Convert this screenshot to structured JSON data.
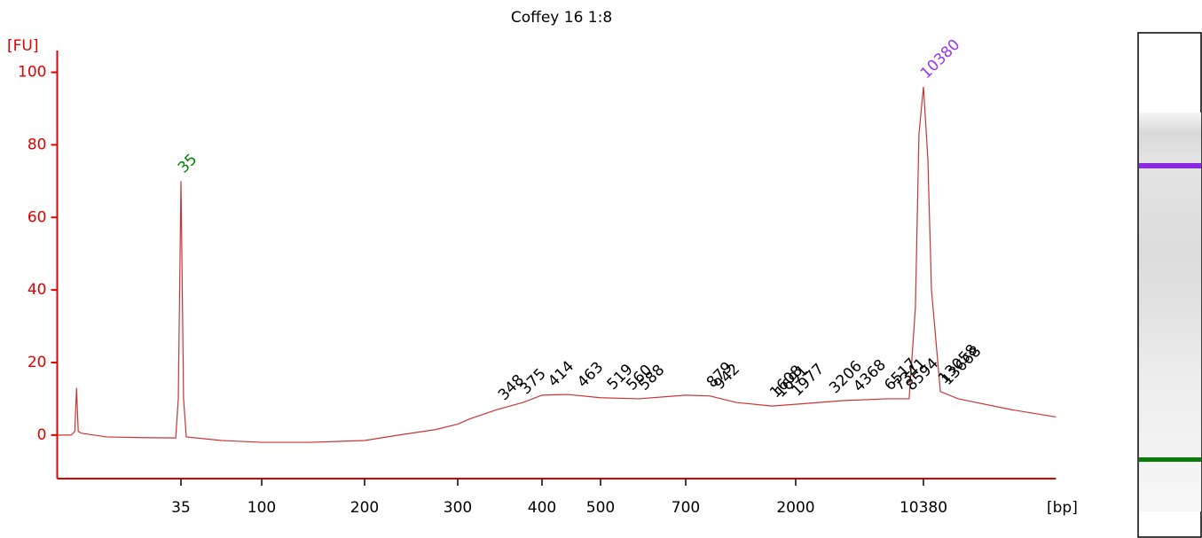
{
  "chart_data": {
    "type": "line",
    "title": "Coffey 16 1:8",
    "y_label": "[FU]",
    "x_label": "[bp]",
    "color": "#cc3333",
    "axis_color": "#e00000",
    "x": [
      7,
      8.4,
      8.8,
      9,
      9.2,
      9.6,
      13.3,
      21.1,
      32.7,
      33.8,
      34.6,
      35,
      35.4,
      36.2,
      37.5,
      59.4,
      100,
      139,
      200,
      232,
      272,
      300,
      313,
      343,
      375,
      400,
      441,
      500,
      581,
      700,
      879,
      1135,
      1592,
      2000,
      3673,
      6516,
      8630,
      9354,
      9795,
      10380,
      10990,
      11510,
      12910,
      16260,
      20440,
      32310,
      57280
    ],
    "values": [
      0,
      0,
      1,
      13,
      1,
      0.5,
      -0.5,
      -0.7,
      -0.8,
      10,
      50,
      70,
      50,
      10,
      -0.5,
      -1.5,
      -2,
      -2,
      -1.5,
      0,
      1.5,
      3,
      4.5,
      7,
      9,
      11,
      11.2,
      10.3,
      10,
      11,
      10.8,
      9,
      8,
      8.5,
      9.5,
      10,
      10,
      35,
      83,
      96,
      76,
      40,
      12,
      10,
      9,
      7,
      5
    ],
    "xlim": [
      7,
      57280
    ],
    "ylim": [
      -12,
      106
    ],
    "xticks": [
      35,
      100,
      200,
      300,
      400,
      500,
      700,
      2000,
      10380
    ],
    "yticks": [
      0,
      20,
      40,
      60,
      80,
      100
    ],
    "peaks": [
      {
        "size": 35,
        "color": "#008000"
      },
      {
        "size": 10380,
        "color": "#9933ff"
      },
      {
        "size": 348,
        "color": "#000000"
      },
      {
        "size": 375,
        "color": "#000000"
      },
      {
        "size": 414,
        "color": "#000000"
      },
      {
        "size": 463,
        "color": "#000000"
      },
      {
        "size": 519,
        "color": "#000000"
      },
      {
        "size": 560,
        "color": "#000000"
      },
      {
        "size": 588,
        "color": "#000000"
      },
      {
        "size": 879,
        "color": "#000000"
      },
      {
        "size": 942,
        "color": "#000000"
      },
      {
        "size": 1608,
        "color": "#000000"
      },
      {
        "size": 1691,
        "color": "#000000"
      },
      {
        "size": 1977,
        "color": "#000000"
      },
      {
        "size": 3206,
        "color": "#000000"
      },
      {
        "size": 4368,
        "color": "#000000"
      },
      {
        "size": 6517,
        "color": "#000000"
      },
      {
        "size": 7341,
        "color": "#000000"
      },
      {
        "size": 8594,
        "color": "#000000"
      },
      {
        "size": 13058,
        "color": "#000000"
      },
      {
        "size": 13668,
        "color": "#000000"
      }
    ]
  }
}
